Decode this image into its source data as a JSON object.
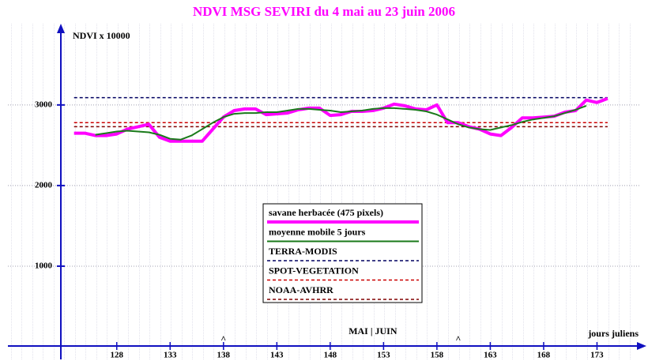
{
  "chart_data": {
    "type": "line",
    "title": "NDVI MSG SEVIRI du 4 mai au 23 juin 2006",
    "y_label": "NDVI x 10000",
    "x_label": "jours juliens",
    "annotations": [
      {
        "text": "MAI | JUIN",
        "x": 152
      },
      {
        "text": "^",
        "x": 138
      },
      {
        "text": "^",
        "x": 160
      }
    ],
    "x": [
      124,
      125,
      126,
      127,
      128,
      129,
      130,
      131,
      132,
      133,
      134,
      135,
      136,
      137,
      138,
      139,
      140,
      141,
      142,
      143,
      144,
      145,
      146,
      147,
      148,
      149,
      150,
      151,
      152,
      153,
      154,
      155,
      156,
      157,
      158,
      159,
      160,
      161,
      162,
      163,
      164,
      165,
      166,
      167,
      168,
      169,
      170,
      171,
      172,
      173,
      174
    ],
    "series": [
      {
        "name": "savane herbacée (475 pixels)",
        "color": "#ff00ff",
        "width": 4,
        "values": [
          2650,
          2650,
          2620,
          2620,
          2640,
          2700,
          2730,
          2760,
          2600,
          2550,
          2550,
          2550,
          2550,
          2700,
          2850,
          2930,
          2950,
          2950,
          2880,
          2890,
          2900,
          2940,
          2960,
          2960,
          2870,
          2880,
          2920,
          2920,
          2930,
          2960,
          3010,
          2990,
          2950,
          2940,
          3000,
          2780,
          2780,
          2730,
          2700,
          2640,
          2620,
          2720,
          2840,
          2840,
          2850,
          2860,
          2910,
          2930,
          3060,
          3030,
          3080
        ]
      },
      {
        "name": "moyenne mobile 5 jours",
        "color": "#1a7a1a",
        "width": 2,
        "values": [
          null,
          null,
          2630,
          2650,
          2670,
          2680,
          2670,
          2660,
          2630,
          2580,
          2570,
          2620,
          2700,
          2780,
          2850,
          2890,
          2900,
          2900,
          2910,
          2910,
          2930,
          2950,
          2950,
          2940,
          2930,
          2910,
          2920,
          2930,
          2950,
          2960,
          2960,
          2950,
          2940,
          2920,
          2880,
          2820,
          2760,
          2720,
          2700,
          2690,
          2720,
          2750,
          2790,
          2820,
          2840,
          2860,
          2900,
          2940,
          2990,
          null,
          null
        ]
      }
    ],
    "reference_lines": [
      {
        "name": "TERRA-MODIS",
        "color": "#000060",
        "value": 3090
      },
      {
        "name": "SPOT-VEGETATION",
        "color": "#cc0000",
        "value": 2780
      },
      {
        "name": "NOAA-AVHRR",
        "color": "#800000",
        "value": 2730
      }
    ],
    "xlim": [
      117.8,
      176.3
    ],
    "ylim": [
      0,
      3900
    ],
    "xticks": [
      128,
      133,
      138,
      143,
      148,
      153,
      158,
      163,
      168,
      173
    ],
    "yticks": [
      1000,
      2000,
      3000
    ],
    "grid": true
  }
}
